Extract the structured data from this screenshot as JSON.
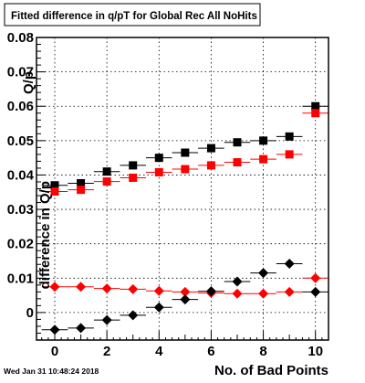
{
  "chart_data": {
    "type": "scatter",
    "title": "Fitted difference in q/pT for Global Rec All NoHits",
    "xlabel": "No. of Bad Points",
    "ylabel": "difference in Q/p",
    "ylabel_overlap": "Q/p",
    "timestamp": "Wed Jan 31 10:48:24 2018",
    "xlim": [
      -0.7,
      10.5
    ],
    "ylim": [
      -0.008,
      0.08
    ],
    "x_ticks": [
      0,
      2,
      4,
      6,
      8,
      10
    ],
    "y_ticks": [
      0,
      0.01,
      0.02,
      0.03,
      0.04,
      0.05,
      0.06,
      0.07,
      0.08
    ],
    "y_tick_labels": [
      "0",
      "0.01",
      "0.02",
      "0.03",
      "0.04",
      "0.05",
      "0.06",
      "0.07",
      "0.08"
    ],
    "grid": true,
    "x_error_half_width": 0.5,
    "series": [
      {
        "marker": "square",
        "color": "#000000",
        "x": [
          0,
          1,
          2,
          3,
          4,
          5,
          6,
          7,
          8,
          9,
          10
        ],
        "y": [
          0.037,
          0.0376,
          0.041,
          0.0428,
          0.045,
          0.0465,
          0.0478,
          0.0495,
          0.05,
          0.0512,
          0.06
        ]
      },
      {
        "marker": "square",
        "color": "#ff0000",
        "x": [
          0,
          1,
          2,
          3,
          4,
          5,
          6,
          7,
          8,
          9,
          10
        ],
        "y": [
          0.0352,
          0.0357,
          0.0381,
          0.0392,
          0.0408,
          0.0417,
          0.0428,
          0.0437,
          0.0446,
          0.046,
          0.058
        ]
      },
      {
        "marker": "diamond",
        "color": "#ff0000",
        "x": [
          0,
          1,
          2,
          3,
          4,
          5,
          6,
          7,
          8,
          9,
          10
        ],
        "y": [
          0.0075,
          0.0075,
          0.007,
          0.0068,
          0.0063,
          0.006,
          0.0057,
          0.0055,
          0.0055,
          0.006,
          0.01
        ]
      },
      {
        "marker": "diamond",
        "color": "#000000",
        "x": [
          0,
          1,
          2,
          3,
          4,
          5,
          6,
          7,
          8,
          9,
          10
        ],
        "y": [
          -0.005,
          -0.0045,
          -0.0022,
          -0.0008,
          0.0015,
          0.0038,
          0.0062,
          0.009,
          0.0115,
          0.0142,
          0.006
        ]
      }
    ]
  }
}
